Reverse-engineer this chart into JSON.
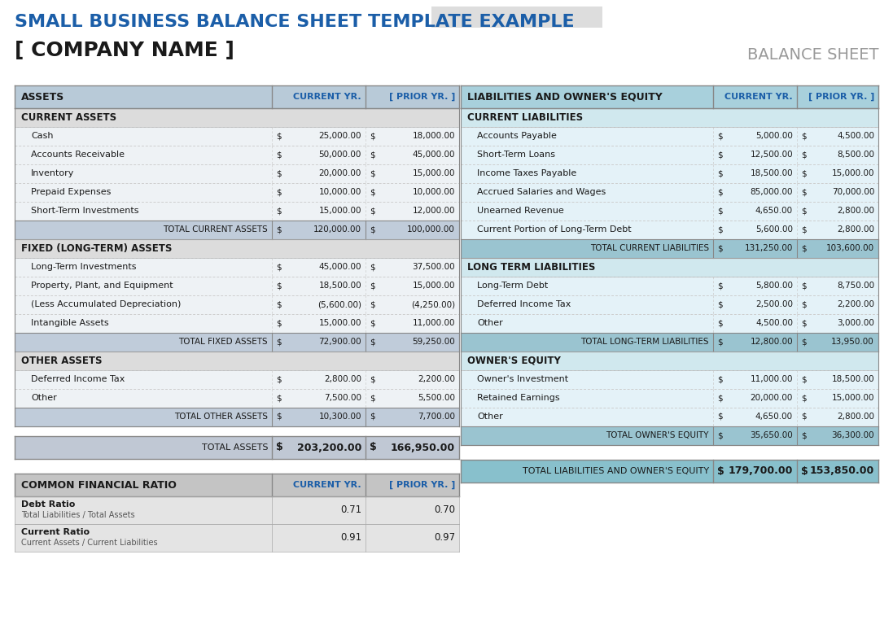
{
  "title": "SMALL BUSINESS BALANCE SHEET TEMPLATE EXAMPLE",
  "company_name": "[ COMPANY NAME ]",
  "balance_sheet_label": "BALANCE SHEET",
  "title_color": "#1B5EA8",
  "company_name_color": "#1a1a1a",
  "balance_sheet_color": "#999999",
  "header_bg_left": "#B8CAD8",
  "header_bg_right": "#A8D0DC",
  "section_bg_left": "#DCDCDC",
  "section_bg_right": "#D0E8EE",
  "row_bg_light": "#EEF2F5",
  "row_bg_right_light": "#E4F2F8",
  "total_bg_left": "#C0CCDA",
  "total_bg_right": "#9AC4D0",
  "grand_total_bg_left": "#C0C8D4",
  "grand_total_bg_right": "#88C0CC",
  "ratio_header_bg": "#C4C4C4",
  "ratio_row_bg": "#E4E4E4",
  "bg_color": "#FFFFFF",
  "assets_header": "ASSETS",
  "assets_col1": "CURRENT YR.",
  "assets_col2": "[ PRIOR YR. ]",
  "liab_header": "LIABILITIES AND OWNER'S EQUITY",
  "liab_col1": "CURRENT YR.",
  "liab_col2": "[ PRIOR YR. ]",
  "assets_rows": [
    {
      "label": "CURRENT ASSETS",
      "type": "section",
      "v1": "",
      "v2": ""
    },
    {
      "label": "Cash",
      "type": "data",
      "v1": "$ 25,000.00",
      "v2": "$ 18,000.00"
    },
    {
      "label": "Accounts Receivable",
      "type": "data",
      "v1": "$ 50,000.00",
      "v2": "$ 45,000.00"
    },
    {
      "label": "Inventory",
      "type": "data",
      "v1": "$ 20,000.00",
      "v2": "$ 15,000.00"
    },
    {
      "label": "Prepaid Expenses",
      "type": "data",
      "v1": "$ 10,000.00",
      "v2": "$ 10,000.00"
    },
    {
      "label": "Short-Term Investments",
      "type": "data",
      "v1": "$ 15,000.00",
      "v2": "$ 12,000.00"
    },
    {
      "label": "TOTAL CURRENT ASSETS",
      "type": "total",
      "v1": "$ 120,000.00",
      "v2": "$ 100,000.00"
    },
    {
      "label": "FIXED (LONG-TERM) ASSETS",
      "type": "section",
      "v1": "",
      "v2": ""
    },
    {
      "label": "Long-Term Investments",
      "type": "data",
      "v1": "$ 45,000.00",
      "v2": "$ 37,500.00"
    },
    {
      "label": "Property, Plant, and Equipment",
      "type": "data",
      "v1": "$ 18,500.00",
      "v2": "$ 15,000.00"
    },
    {
      "label": "(Less Accumulated Depreciation)",
      "type": "data",
      "v1": "$ (5,600.00)",
      "v2": "$ (4,250.00)"
    },
    {
      "label": "Intangible Assets",
      "type": "data",
      "v1": "$ 15,000.00",
      "v2": "$ 11,000.00"
    },
    {
      "label": "TOTAL FIXED ASSETS",
      "type": "total",
      "v1": "$ 72,900.00",
      "v2": "$ 59,250.00"
    },
    {
      "label": "OTHER ASSETS",
      "type": "section",
      "v1": "",
      "v2": ""
    },
    {
      "label": "Deferred Income Tax",
      "type": "data",
      "v1": "$ 2,800.00",
      "v2": "$ 2,200.00"
    },
    {
      "label": "Other",
      "type": "data",
      "v1": "$ 7,500.00",
      "v2": "$ 5,500.00"
    },
    {
      "label": "TOTAL OTHER ASSETS",
      "type": "total",
      "v1": "$ 10,300.00",
      "v2": "$ 7,700.00"
    }
  ],
  "total_assets": {
    "label": "TOTAL ASSETS",
    "v1": "$ 203,200.00",
    "v2": "$ 166,950.00"
  },
  "liab_rows": [
    {
      "label": "CURRENT LIABILITIES",
      "type": "section",
      "v1": "",
      "v2": ""
    },
    {
      "label": "Accounts Payable",
      "type": "data",
      "v1": "$ 5,000.00",
      "v2": "$ 4,500.00"
    },
    {
      "label": "Short-Term Loans",
      "type": "data",
      "v1": "$ 12,500.00",
      "v2": "$ 8,500.00"
    },
    {
      "label": "Income Taxes Payable",
      "type": "data",
      "v1": "$ 18,500.00",
      "v2": "$ 15,000.00"
    },
    {
      "label": "Accrued Salaries and Wages",
      "type": "data",
      "v1": "$ 85,000.00",
      "v2": "$ 70,000.00"
    },
    {
      "label": "Unearned Revenue",
      "type": "data",
      "v1": "$ 4,650.00",
      "v2": "$ 2,800.00"
    },
    {
      "label": "Current Portion of Long-Term Debt",
      "type": "data",
      "v1": "$ 5,600.00",
      "v2": "$ 2,800.00"
    },
    {
      "label": "TOTAL CURRENT LIABILITIES",
      "type": "total",
      "v1": "$ 131,250.00",
      "v2": "$ 103,600.00"
    },
    {
      "label": "LONG TERM LIABILITIES",
      "type": "section",
      "v1": "",
      "v2": ""
    },
    {
      "label": "Long-Term Debt",
      "type": "data",
      "v1": "$ 5,800.00",
      "v2": "$ 8,750.00"
    },
    {
      "label": "Deferred Income Tax",
      "type": "data",
      "v1": "$ 2,500.00",
      "v2": "$ 2,200.00"
    },
    {
      "label": "Other",
      "type": "data",
      "v1": "$ 4,500.00",
      "v2": "$ 3,000.00"
    },
    {
      "label": "TOTAL LONG-TERM LIABILITIES",
      "type": "total",
      "v1": "$ 12,800.00",
      "v2": "$ 13,950.00"
    },
    {
      "label": "OWNER'S EQUITY",
      "type": "section",
      "v1": "",
      "v2": ""
    },
    {
      "label": "Owner's Investment",
      "type": "data",
      "v1": "$ 11,000.00",
      "v2": "$ 18,500.00"
    },
    {
      "label": "Retained Earnings",
      "type": "data",
      "v1": "$ 20,000.00",
      "v2": "$ 15,000.00"
    },
    {
      "label": "Other",
      "type": "data",
      "v1": "$ 4,650.00",
      "v2": "$ 2,800.00"
    },
    {
      "label": "TOTAL OWNER'S EQUITY",
      "type": "total",
      "v1": "$ 35,650.00",
      "v2": "$ 36,300.00"
    }
  ],
  "total_liab": {
    "label": "TOTAL LIABILITIES AND OWNER'S EQUITY",
    "v1": "$ 179,700.00",
    "v2": "$ 153,850.00"
  },
  "ratio_header": "COMMON FINANCIAL RATIO",
  "ratio_col1": "CURRENT YR.",
  "ratio_col2": "[ PRIOR YR. ]",
  "ratio_rows": [
    {
      "label": "Debt Ratio",
      "sublabel": "Total Liabilities / Total Assets",
      "v1": "0.71",
      "v2": "0.70"
    },
    {
      "label": "Current Ratio",
      "sublabel": "Current Assets / Current Liabilities",
      "v1": "0.91",
      "v2": "0.97"
    }
  ]
}
